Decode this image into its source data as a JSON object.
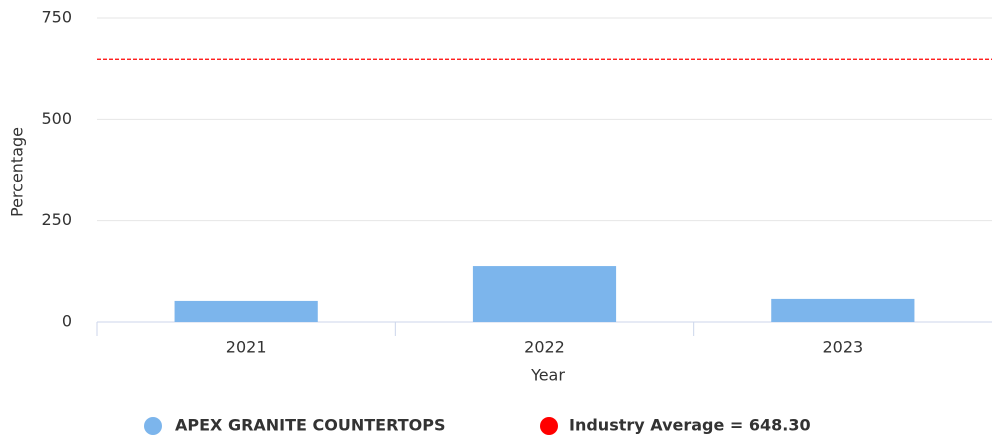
{
  "chart_data": {
    "type": "bar",
    "x_label": "Year",
    "y_label": "Percentage",
    "categories": [
      "2021",
      "2022",
      "2023"
    ],
    "series": [
      {
        "name": "APEX GRANITE COUNTERTOPS",
        "color": "#7cb5ec",
        "values": [
          52,
          138,
          57
        ]
      }
    ],
    "reference_line": {
      "label": "Industry Average = 648.30",
      "value": 648.3,
      "color": "#ff0000"
    },
    "ylim": [
      0,
      750
    ],
    "yticks": [
      0,
      250,
      500,
      750
    ],
    "grid": true
  }
}
